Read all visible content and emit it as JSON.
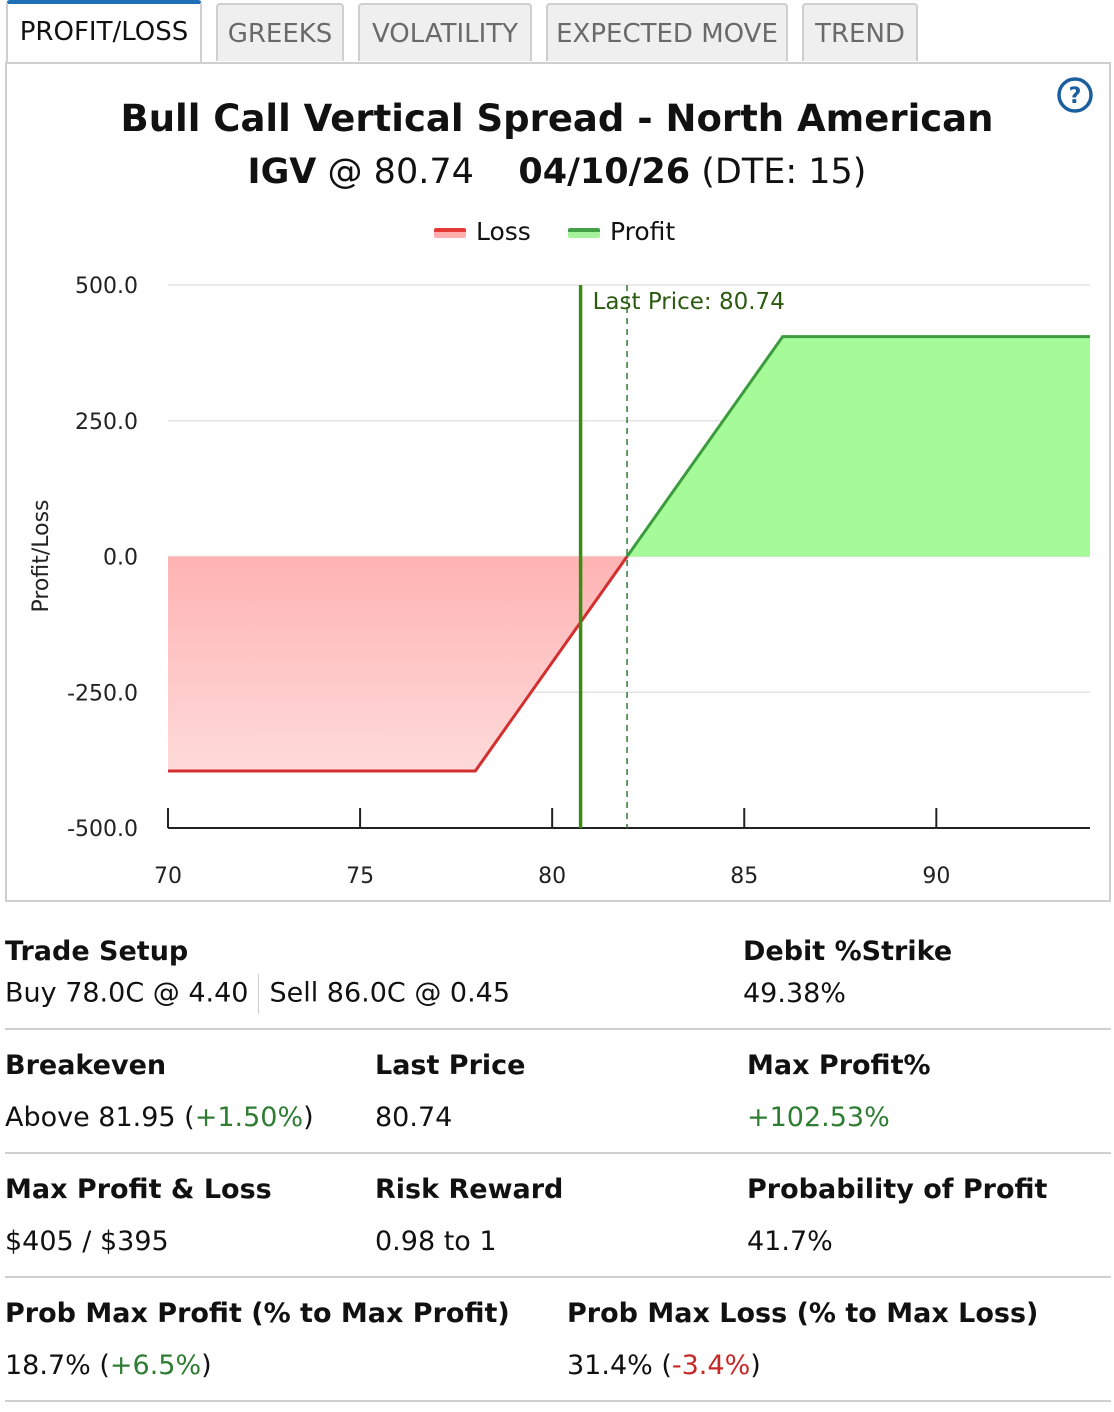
{
  "tabs": [
    {
      "label": "PROFIT/LOSS",
      "active": true
    },
    {
      "label": "GREEKS",
      "active": false
    },
    {
      "label": "VOLATILITY",
      "active": false
    },
    {
      "label": "EXPECTED MOVE",
      "active": false
    },
    {
      "label": "TREND",
      "active": false
    }
  ],
  "help_icon": "question-circle-icon",
  "chart_data": {
    "type": "area",
    "title": "Bull Call Vertical Spread - North American",
    "subtitle": {
      "symbol": "IGV",
      "at": "@",
      "price": "80.74",
      "expiry": "04/10/26",
      "dte": "(DTE: 15)"
    },
    "legend": [
      {
        "name": "Loss",
        "color": "#e53935"
      },
      {
        "name": "Profit",
        "color": "#43a047"
      }
    ],
    "ylabel": "Profit/Loss",
    "xlabel": "",
    "xlim": [
      70,
      94
    ],
    "ylim": [
      -500,
      500
    ],
    "x_ticks": [
      "70",
      "75",
      "80",
      "85",
      "90"
    ],
    "y_ticks": [
      "500.0",
      "250.0",
      "0.0",
      "-250.0",
      "-500.0"
    ],
    "series": [
      {
        "name": "Loss",
        "x": [
          70,
          78,
          81.95
        ],
        "y": [
          -395,
          -395,
          0
        ]
      },
      {
        "name": "Profit",
        "x": [
          81.95,
          86,
          94
        ],
        "y": [
          0,
          405,
          405
        ]
      }
    ],
    "last_price": 80.74,
    "last_price_label": "Last Price: 80.74",
    "breakeven_line": 81.95
  },
  "trade_setup": {
    "label": "Trade Setup",
    "buy": "Buy 78.0C @ 4.40",
    "sell": "Sell 86.0C @ 0.45"
  },
  "debit_strike": {
    "label": "Debit %Strike",
    "value": "49.38%"
  },
  "breakeven": {
    "label": "Breakeven",
    "prefix": "Above 81.95 (",
    "change": "+1.50%",
    "suffix": ")"
  },
  "last_price": {
    "label": "Last Price",
    "value": "80.74"
  },
  "max_profit_pct": {
    "label": "Max Profit%",
    "value": "+102.53%"
  },
  "max_pl": {
    "label": "Max Profit & Loss",
    "value": "$405 / $395"
  },
  "risk_reward": {
    "label": "Risk Reward",
    "value": "0.98 to 1"
  },
  "prob_profit": {
    "label": "Probability of Profit",
    "value": "41.7%"
  },
  "prob_max_profit": {
    "label": "Prob Max Profit (% to Max Profit)",
    "prefix": "18.7% (",
    "change": "+6.5%",
    "suffix": ")"
  },
  "prob_max_loss": {
    "label": "Prob Max Loss (% to Max Loss)",
    "prefix": "31.4% (",
    "change": "-3.4%",
    "suffix": ")"
  }
}
